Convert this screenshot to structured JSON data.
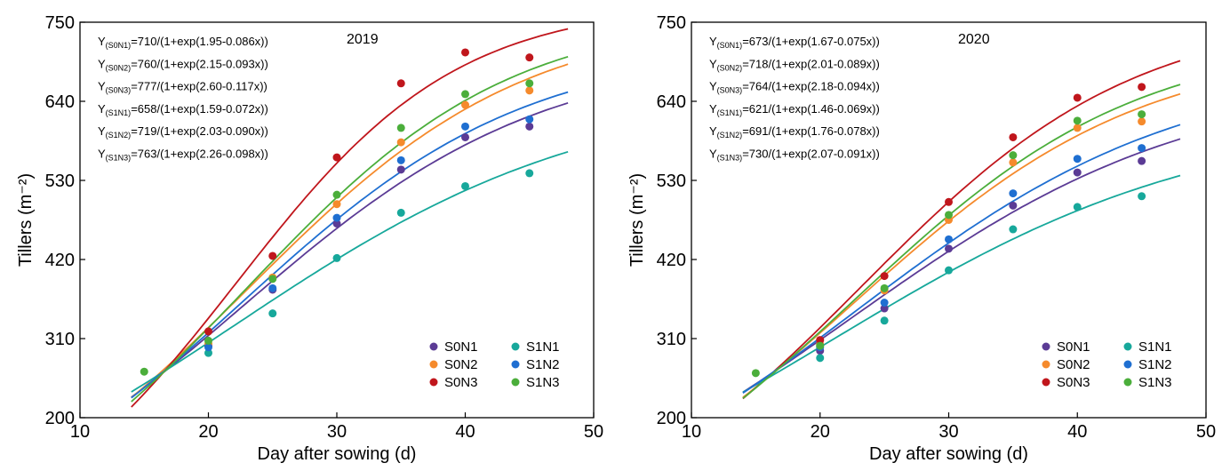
{
  "chart_data": [
    {
      "type": "scatter",
      "label": "2019",
      "xlabel": "Day after sowing (d)",
      "ylabel": "Tillers (m⁻²)",
      "xlim": [
        10,
        50
      ],
      "xticks": [
        10,
        20,
        30,
        40,
        50
      ],
      "ylim": [
        200,
        750
      ],
      "yticks": [
        200,
        310,
        420,
        530,
        640,
        750
      ],
      "legend": "lower right",
      "x": [
        15,
        20,
        25,
        30,
        35,
        40,
        45
      ],
      "series": [
        {
          "name": "S0N1",
          "color": "#5b3b95",
          "values": [
            null,
            300,
            378,
            470,
            545,
            590,
            605
          ],
          "equation": {
            "lhs": "Y",
            "sub": "(S0N1)",
            "rhs": "=710/(1+exp(1.95-0.086x))"
          },
          "fit": {
            "a": 710,
            "b": 1.95,
            "c": 0.086,
            "xrange": [
              14,
              48
            ]
          }
        },
        {
          "name": "S0N2",
          "color": "#f58a2c",
          "values": [
            null,
            303,
            395,
            497,
            583,
            635,
            655
          ],
          "equation": {
            "lhs": "Y",
            "sub": "(S0N2)",
            "rhs": "=760/(1+exp(2.15-0.093x))"
          },
          "fit": {
            "a": 760,
            "b": 2.15,
            "c": 0.093,
            "xrange": [
              14,
              48
            ]
          }
        },
        {
          "name": "S0N3",
          "color": "#c0161c",
          "values": [
            null,
            320,
            425,
            562,
            665,
            708,
            701
          ],
          "equation": {
            "lhs": "Y",
            "sub": "(S0N3)",
            "rhs": "=777/(1+exp(2.60-0.117x))"
          },
          "fit": {
            "a": 777,
            "b": 2.6,
            "c": 0.117,
            "xrange": [
              14,
              48
            ]
          }
        },
        {
          "name": "S1N1",
          "color": "#17a89b",
          "values": [
            null,
            290,
            345,
            422,
            485,
            522,
            540
          ],
          "equation": {
            "lhs": "Y",
            "sub": "(S1N1)",
            "rhs": "=658/(1+exp(1.59-0.072x))"
          },
          "fit": {
            "a": 658,
            "b": 1.59,
            "c": 0.072,
            "xrange": [
              14,
              48
            ]
          }
        },
        {
          "name": "S1N2",
          "color": "#1f6fd1",
          "values": [
            null,
            298,
            380,
            478,
            558,
            605,
            615
          ],
          "equation": {
            "lhs": "Y",
            "sub": "(S1N2)",
            "rhs": "=719/(1+exp(2.03-0.090x))"
          },
          "fit": {
            "a": 719,
            "b": 2.03,
            "c": 0.09,
            "xrange": [
              14,
              48
            ]
          }
        },
        {
          "name": "S1N3",
          "color": "#4bae3b",
          "values": [
            264,
            307,
            393,
            510,
            603,
            650,
            665
          ],
          "equation": {
            "lhs": "Y",
            "sub": "(S1N3)",
            "rhs": "=763/(1+exp(2.26-0.098x))"
          },
          "fit": {
            "a": 763,
            "b": 2.26,
            "c": 0.098,
            "xrange": [
              14,
              48
            ]
          }
        }
      ]
    },
    {
      "type": "scatter",
      "label": "2020",
      "xlabel": "Day after sowing (d)",
      "ylabel": "Tillers (m⁻²)",
      "xlim": [
        10,
        50
      ],
      "xticks": [
        10,
        20,
        30,
        40,
        50
      ],
      "ylim": [
        200,
        750
      ],
      "yticks": [
        200,
        310,
        420,
        530,
        640,
        750
      ],
      "legend": "lower right",
      "x": [
        15,
        20,
        25,
        30,
        35,
        40,
        45
      ],
      "series": [
        {
          "name": "S0N1",
          "color": "#5b3b95",
          "values": [
            null,
            293,
            352,
            435,
            495,
            541,
            557
          ],
          "equation": {
            "lhs": "Y",
            "sub": "(S0N1)",
            "rhs": "=673/(1+exp(1.67-0.075x))"
          },
          "fit": {
            "a": 673,
            "b": 1.67,
            "c": 0.075,
            "xrange": [
              14,
              48
            ]
          }
        },
        {
          "name": "S0N2",
          "color": "#f58a2c",
          "values": [
            null,
            302,
            377,
            475,
            555,
            603,
            612
          ],
          "equation": {
            "lhs": "Y",
            "sub": "(S0N2)",
            "rhs": "=718/(1+exp(2.01-0.089x))"
          },
          "fit": {
            "a": 718,
            "b": 2.01,
            "c": 0.089,
            "xrange": [
              14,
              48
            ]
          }
        },
        {
          "name": "S0N3",
          "color": "#c0161c",
          "values": [
            null,
            308,
            397,
            500,
            590,
            645,
            660
          ],
          "equation": {
            "lhs": "Y",
            "sub": "(S0N3)",
            "rhs": "=764/(1+exp(2.18-0.094x))"
          },
          "fit": {
            "a": 764,
            "b": 2.18,
            "c": 0.094,
            "xrange": [
              14,
              48
            ]
          }
        },
        {
          "name": "S1N1",
          "color": "#17a89b",
          "values": [
            null,
            283,
            335,
            405,
            462,
            493,
            508
          ],
          "equation": {
            "lhs": "Y",
            "sub": "(S1N1)",
            "rhs": "=621/(1+exp(1.46-0.069x))"
          },
          "fit": {
            "a": 621,
            "b": 1.46,
            "c": 0.069,
            "xrange": [
              14,
              48
            ]
          }
        },
        {
          "name": "S1N2",
          "color": "#1f6fd1",
          "values": [
            null,
            298,
            360,
            448,
            512,
            560,
            575
          ],
          "equation": {
            "lhs": "Y",
            "sub": "(S1N2)",
            "rhs": "=691/(1+exp(1.76-0.078x))"
          },
          "fit": {
            "a": 691,
            "b": 1.76,
            "c": 0.078,
            "xrange": [
              14,
              48
            ]
          }
        },
        {
          "name": "S1N3",
          "color": "#4bae3b",
          "values": [
            262,
            300,
            380,
            482,
            565,
            613,
            622
          ],
          "equation": {
            "lhs": "Y",
            "sub": "(S1N3)",
            "rhs": "=730/(1+exp(2.07-0.091x))"
          },
          "fit": {
            "a": 730,
            "b": 2.07,
            "c": 0.091,
            "xrange": [
              14,
              48
            ]
          }
        }
      ]
    }
  ]
}
